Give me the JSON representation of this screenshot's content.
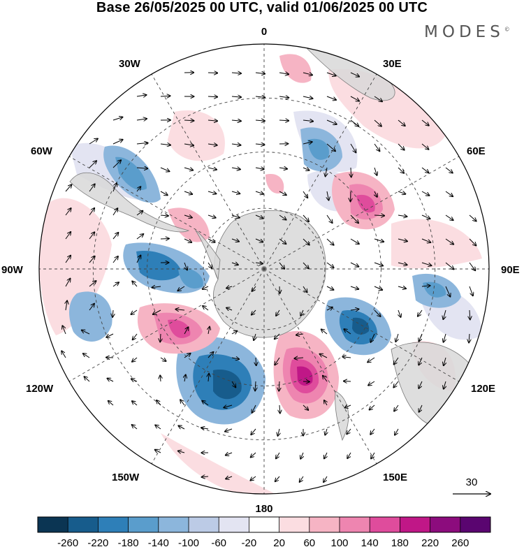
{
  "header": {
    "title": "Base 26/05/2025 00 UTC, valid 01/06/2025 00 UTC",
    "brand": "MODES",
    "brand_mark": "©"
  },
  "map": {
    "projection": "south-polar-stereographic",
    "longitude_labels": {
      "top": "0",
      "top_right": "30E",
      "upper_right": "60E",
      "right": "90E",
      "lower_right": "120E",
      "bottom_right": "150E",
      "bottom": "180",
      "bottom_left": "150W",
      "lower_left": "120W",
      "left": "90W",
      "upper_left": "60W",
      "top_left": "30W"
    },
    "vector_reference": "30"
  },
  "colorbar": {
    "ticks": [
      "-260",
      "-220",
      "-180",
      "-140",
      "-100",
      "-60",
      "-20",
      "20",
      "60",
      "100",
      "140",
      "180",
      "220",
      "260"
    ],
    "colors": [
      "#0b3553",
      "#175c8c",
      "#2e7fb8",
      "#5a9dcc",
      "#8cb6dc",
      "#bccbe6",
      "#e3e4f2",
      "#ffffff",
      "#fbdde1",
      "#f6b4c4",
      "#ee85b0",
      "#df4c9c",
      "#c01787",
      "#8c0c7d",
      "#5a0570"
    ]
  },
  "colors": {
    "land": "#d8d8d8",
    "land_edge": "#7a7a7a",
    "grid": "#444444"
  }
}
